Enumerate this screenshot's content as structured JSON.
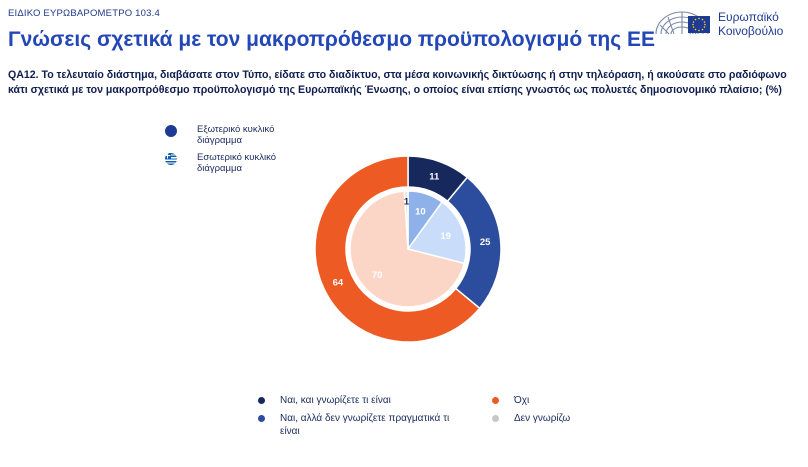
{
  "header": {
    "survey_label": "ΕΙΔΙΚΟ ΕΥΡΩΒΑΡΟΜΕΤΡΟ 103.4",
    "title": "Γνώσεις σχετικά με τον μακροπρόθεσμο προϋπολογισμό της ΕΕ",
    "logo_line1": "Ευρωπαϊκό",
    "logo_line2": "Κοινοβούλιο"
  },
  "question": "QA12. Το τελευταίο διάστημα, διαβάσατε στον Τύπο, είδατε στο διαδίκτυο, στα μέσα κοινωνικής δικτύωσης ή στην τηλεόραση, ή ακούσατε στο ραδιόφωνο κάτι σχετικά με τον μακροπρόθεσμο προϋπολογισμό της Ευρωπαϊκής Ένωσης, ο οποίος είναι επίσης γνωστός ως πολυετές δημοσιονομικό πλαίσιο; (%)",
  "ring_legend": {
    "outer": "Εξωτερικό κυκλικό διάγραμμα",
    "inner": "Εσωτερικό κυκλικό διάγραμμα"
  },
  "colors": {
    "outer": [
      "#16285c",
      "#2c4c9e",
      "#ee5a24",
      "#c8c8c8"
    ],
    "inner": [
      "#8fb1ea",
      "#c9dcf9",
      "#fbd6c6",
      "#e3e3e3"
    ]
  },
  "chart_data": {
    "type": "pie",
    "categories": [
      "Ναι, και γνωρίζετε τι είναι",
      "Ναι, αλλά δεν γνωρίζετε πραγματικά τι είναι",
      "Όχι",
      "Δεν γνωρίζω"
    ],
    "series": [
      {
        "name": "Εξωτερικό κυκλικό διάγραμμα",
        "values": [
          11,
          25,
          64,
          0
        ]
      },
      {
        "name": "Εσωτερικό κυκλικό διάγραμμα",
        "values": [
          10,
          19,
          70,
          1
        ]
      }
    ],
    "labels": {
      "outer": [
        "11",
        "25",
        "64",
        ""
      ],
      "inner": [
        "10",
        "19",
        "70",
        "1"
      ]
    },
    "legend": {
      "position": "bottom",
      "entries": [
        "Ναι, και γνωρίζετε τι είναι",
        "Όχι",
        "Ναι, αλλά δεν γνωρίζετε πραγματικά τι είναι",
        "Δεν γνωρίζω"
      ]
    }
  }
}
